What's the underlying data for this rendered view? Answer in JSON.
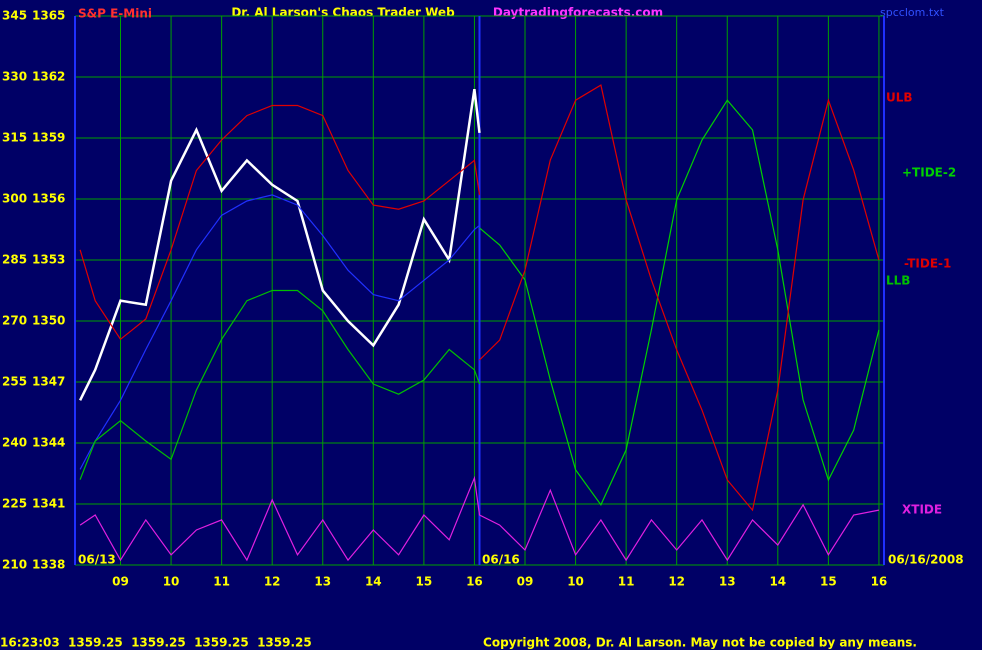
{
  "chart_data": {
    "type": "line",
    "title": "Dr. Al Larson's Chaos Trader Web",
    "subtitle": "Daytradingforecasts.com",
    "file_name": "spcclom.txt",
    "date_labels": [
      "06/13",
      "06/16",
      "06/16/2008"
    ],
    "status_line": "16:23:03  1359.25  1359.25  1359.25  1359.25",
    "copyright": "Copyright 2008, Dr. Al Larson. May not be copied by any means.",
    "grid": true,
    "xlim": [
      8.1,
      24.1
    ],
    "xticks": [
      {
        "value": 9,
        "label": "09"
      },
      10,
      11,
      12,
      13,
      14,
      15,
      16,
      {
        "value": 17,
        "label": "09"
      },
      {
        "value": 18,
        "label": "10"
      },
      {
        "value": 19,
        "label": "11"
      },
      {
        "value": 20,
        "label": "12"
      },
      {
        "value": 21,
        "label": "13"
      },
      {
        "value": 22,
        "label": "14"
      },
      {
        "value": 23,
        "label": "15"
      },
      {
        "value": 24,
        "label": "16"
      }
    ],
    "ylim": [
      210,
      345
    ],
    "yticks": [
      210,
      225,
      240,
      255,
      270,
      285,
      300,
      315,
      330,
      345
    ],
    "y2lim": [
      1338,
      1365
    ],
    "y2ticks": [
      1338,
      1341,
      1344,
      1347,
      1350,
      1353,
      1356,
      1359,
      1362,
      1365
    ],
    "x": [
      8.2,
      8.5,
      9,
      9.5,
      10,
      10.5,
      11,
      11.5,
      12,
      12.5,
      13,
      13.5,
      14,
      14.5,
      15,
      15.5,
      16,
      16.1,
      16.5,
      17,
      17.5,
      18,
      18.5,
      19,
      19.5,
      20,
      20.5,
      21,
      21.5,
      22,
      22.5,
      23,
      23.5,
      24
    ],
    "series": [
      {
        "name": "S&P E-Mini",
        "color": "#ffffff",
        "axis": "y2",
        "values": [
          1346.1,
          1347.6,
          1351.0,
          1350.8,
          1356.9,
          1359.4,
          1356.4,
          1357.9,
          1356.7,
          1355.9,
          1351.5,
          1350.0,
          1348.8,
          1350.8,
          1355.0,
          1353.0,
          1361.4,
          1359.25,
          null,
          null,
          null,
          null,
          null,
          null,
          null,
          null,
          null,
          null,
          null,
          null,
          null,
          null,
          null,
          null
        ]
      },
      {
        "color": "#2030ff",
        "axis": "y2",
        "values": [
          1342.7,
          1344.1,
          1346.1,
          1348.6,
          1351.0,
          1353.5,
          1355.2,
          1355.9,
          1356.2,
          1355.7,
          1354.2,
          1352.5,
          1351.3,
          1351.0,
          1352.0,
          1353.0,
          1354.5,
          1354.7,
          null,
          null,
          null,
          null,
          null,
          null,
          null,
          null,
          null,
          null,
          null,
          null,
          null,
          null,
          null,
          null
        ]
      },
      {
        "name": "ULB",
        "color": "#e00000",
        "axis": "y2",
        "values": [
          1353.5,
          1351.0,
          1349.1,
          1350.1,
          1353.5,
          1357.4,
          1358.9,
          1360.1,
          1360.6,
          1360.6,
          1360.1,
          1357.4,
          1355.7,
          1355.5,
          1355.9,
          1356.9,
          1357.9,
          1356.2,
          null,
          null,
          null,
          null,
          null,
          null,
          null,
          null,
          null,
          null,
          null,
          null,
          null,
          null,
          null,
          null
        ]
      },
      {
        "name": "LLB",
        "color": "#00c000",
        "axis": "y2",
        "values": [
          1342.2,
          1344.1,
          1345.1,
          1344.1,
          1343.2,
          1346.6,
          1349.1,
          1351.0,
          1351.5,
          1351.5,
          1350.5,
          1348.6,
          1346.9,
          1346.4,
          1347.1,
          1348.6,
          1347.6,
          1346.9,
          null,
          null,
          null,
          null,
          null,
          null,
          null,
          null,
          null,
          null,
          null,
          null,
          null,
          null,
          null,
          null
        ]
      },
      {
        "name": "+TIDE-2",
        "color": "#00d000",
        "values": [
          null,
          null,
          null,
          null,
          null,
          null,
          null,
          null,
          null,
          null,
          null,
          null,
          null,
          null,
          null,
          null,
          null,
          292.9,
          288.7,
          280.1,
          255.5,
          233.4,
          224.8,
          238.3,
          267.8,
          299.8,
          314.5,
          324.3,
          317.0,
          287.5,
          250.6,
          230.9,
          243.2,
          267.8
        ]
      },
      {
        "name": "-TIDE-1",
        "color": "#e00000",
        "values": [
          null,
          null,
          null,
          null,
          null,
          null,
          null,
          null,
          null,
          null,
          null,
          null,
          null,
          null,
          null,
          null,
          null,
          260.4,
          265.3,
          282.5,
          309.6,
          324.3,
          328.0,
          299.8,
          280.1,
          262.9,
          248.1,
          230.9,
          223.5,
          253.0,
          299.8,
          324.3,
          307.1,
          285.0
        ]
      },
      {
        "name": "XTIDE",
        "color": "#e020e0",
        "values": [
          219.8,
          222.3,
          211.2,
          221.1,
          212.5,
          218.6,
          221.1,
          211.2,
          226.0,
          212.5,
          221.1,
          211.2,
          218.6,
          212.5,
          222.3,
          216.2,
          231.4,
          222.3,
          219.8,
          213.7,
          228.4,
          212.5,
          221.1,
          211.2,
          221.1,
          213.7,
          221.1,
          211.2,
          221.1,
          214.9,
          224.8,
          212.5,
          222.3,
          223.5
        ]
      }
    ]
  }
}
